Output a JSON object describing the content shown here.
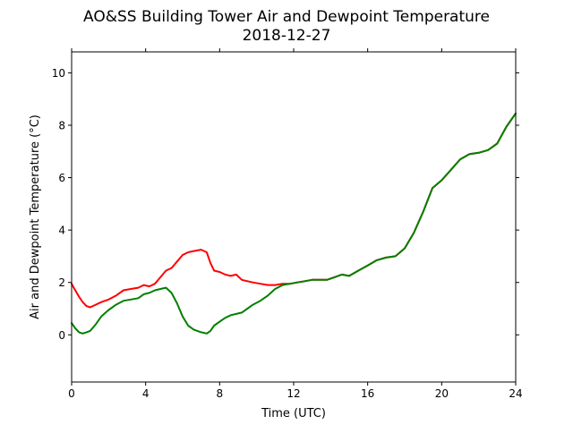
{
  "chart_data": {
    "type": "line",
    "title": "AO&SS Building Tower Air and Dewpoint Temperature",
    "subtitle": "2018-12-27",
    "xlabel": "Time (UTC)",
    "ylabel": "Air and Dewpoint Temperature (°C)",
    "xlim": [
      0,
      24
    ],
    "ylim": [
      -1.8,
      10.8
    ],
    "xticks": [
      0,
      4,
      8,
      12,
      16,
      20,
      24
    ],
    "yticks": [
      0,
      2,
      4,
      6,
      8,
      10
    ],
    "grid": false,
    "legend": "none",
    "series": [
      {
        "color": "#ff0000",
        "x": [
          0,
          0.2,
          0.4,
          0.6,
          0.8,
          1.0,
          1.3,
          1.6,
          2.0,
          2.4,
          2.8,
          3.2,
          3.6,
          3.9,
          4.2,
          4.5,
          4.8,
          5.1,
          5.4,
          5.7,
          6.0,
          6.3,
          6.6,
          7.0,
          7.3,
          7.5,
          7.7,
          8.0,
          8.3,
          8.6,
          8.9,
          9.2,
          9.5,
          9.8,
          10.2,
          10.6,
          11.0,
          11.4,
          11.8,
          12.2,
          12.6,
          13.0,
          13.4,
          13.8,
          14.2,
          14.6,
          15.0,
          15.5,
          16.0,
          16.5,
          17.0,
          17.5,
          18.0,
          18.5,
          19.0,
          19.5,
          20.0,
          20.5,
          21.0,
          21.5,
          22.0,
          22.5,
          23.0,
          23.5,
          24.0
        ],
        "y": [
          1.95,
          1.7,
          1.45,
          1.25,
          1.1,
          1.05,
          1.15,
          1.25,
          1.35,
          1.5,
          1.7,
          1.75,
          1.8,
          1.9,
          1.85,
          1.95,
          2.2,
          2.45,
          2.55,
          2.8,
          3.05,
          3.15,
          3.2,
          3.25,
          3.15,
          2.75,
          2.45,
          2.4,
          2.3,
          2.25,
          2.3,
          2.1,
          2.05,
          2.0,
          1.95,
          1.9,
          1.9,
          1.95,
          1.95,
          2.0,
          2.05,
          2.1,
          2.1,
          2.1,
          2.2,
          2.3,
          2.25,
          2.45,
          2.65,
          2.85,
          2.95,
          3.0,
          3.3,
          3.9,
          4.7,
          5.6,
          5.9,
          6.3,
          6.7,
          6.9,
          6.95,
          7.05,
          7.3,
          7.95,
          8.45
        ]
      },
      {
        "color": "#008000",
        "x": [
          0,
          0.2,
          0.4,
          0.6,
          0.8,
          1.0,
          1.3,
          1.6,
          2.0,
          2.4,
          2.8,
          3.2,
          3.6,
          3.9,
          4.2,
          4.5,
          4.8,
          5.1,
          5.4,
          5.7,
          6.0,
          6.3,
          6.6,
          7.0,
          7.3,
          7.5,
          7.7,
          8.0,
          8.3,
          8.6,
          8.9,
          9.2,
          9.5,
          9.8,
          10.2,
          10.6,
          11.0,
          11.4,
          11.8,
          12.2,
          12.6,
          13.0,
          13.4,
          13.8,
          14.2,
          14.6,
          15.0,
          15.5,
          16.0,
          16.5,
          17.0,
          17.5,
          18.0,
          18.5,
          19.0,
          19.5,
          20.0,
          20.5,
          21.0,
          21.5,
          22.0,
          22.5,
          23.0,
          23.5,
          24.0
        ],
        "y": [
          0.45,
          0.25,
          0.1,
          0.05,
          0.1,
          0.15,
          0.4,
          0.7,
          0.95,
          1.15,
          1.3,
          1.35,
          1.4,
          1.55,
          1.6,
          1.7,
          1.75,
          1.8,
          1.6,
          1.2,
          0.7,
          0.35,
          0.2,
          0.1,
          0.05,
          0.15,
          0.35,
          0.5,
          0.65,
          0.75,
          0.8,
          0.85,
          1.0,
          1.15,
          1.3,
          1.5,
          1.75,
          1.9,
          1.95,
          2.0,
          2.05,
          2.1,
          2.1,
          2.1,
          2.2,
          2.3,
          2.25,
          2.45,
          2.65,
          2.85,
          2.95,
          3.0,
          3.3,
          3.9,
          4.7,
          5.6,
          5.9,
          6.3,
          6.7,
          6.9,
          6.95,
          7.05,
          7.3,
          7.95,
          8.45
        ]
      }
    ]
  }
}
